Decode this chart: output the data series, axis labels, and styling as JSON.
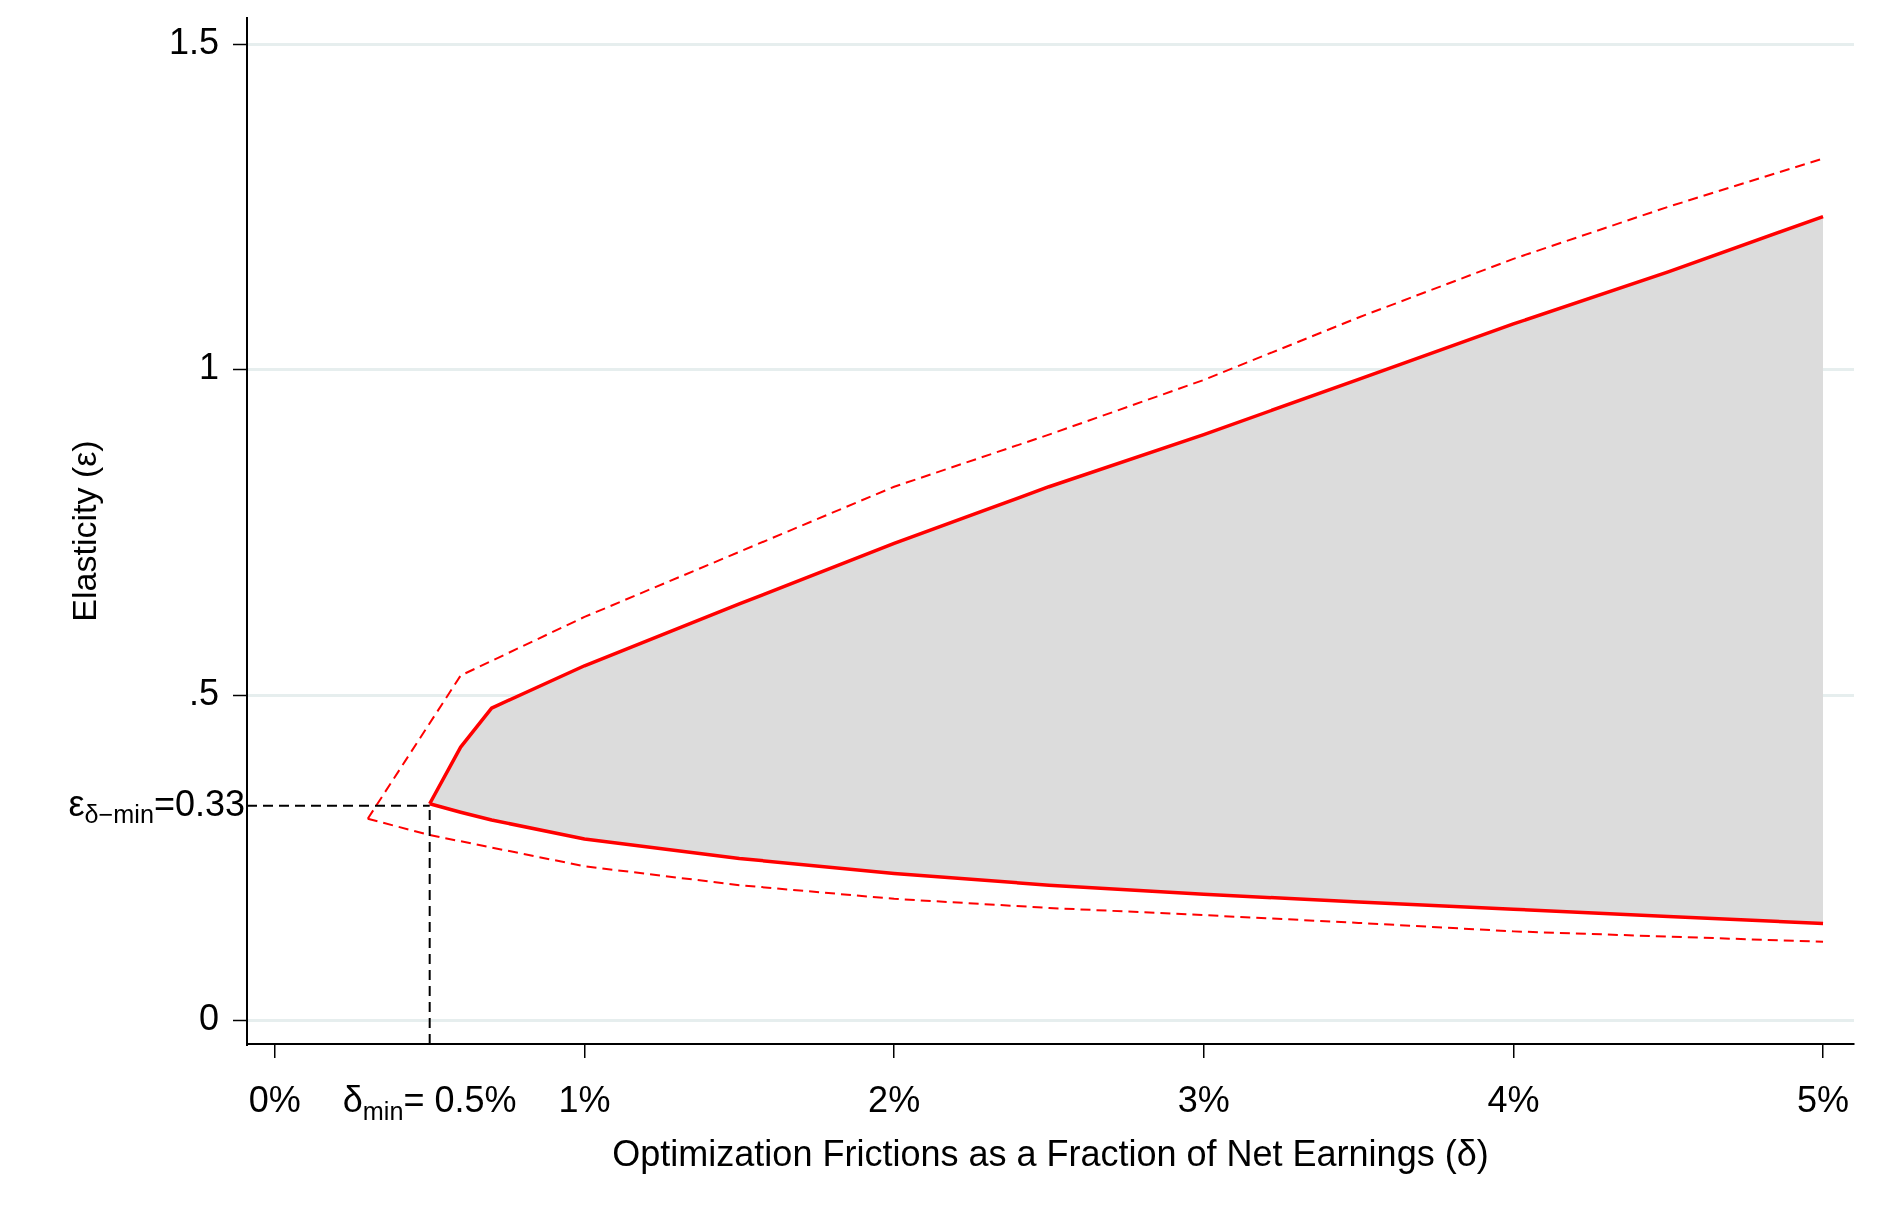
{
  "chart_data": {
    "type": "line",
    "xlabel": "Optimization Frictions as a Fraction of Net Earnings (δ)",
    "ylabel": "Elasticity (ε)",
    "x": [
      0.5,
      0.6,
      0.7,
      1,
      1.5,
      2,
      2.5,
      3,
      3.5,
      4,
      4.5,
      5
    ],
    "series": [
      {
        "color": "#ff0000",
        "line_style": "solid",
        "values": [
          0.333,
          0.32,
          0.308,
          0.279,
          0.249,
          0.226,
          0.208,
          0.194,
          0.182,
          0.171,
          0.16,
          0.149
        ]
      },
      {
        "type": "area",
        "color": "#ff0000",
        "line_style": "solid",
        "values": [
          0.333,
          0.42,
          0.48,
          0.545,
          0.64,
          0.733,
          0.82,
          0.9,
          0.985,
          1.07,
          1.15,
          1.235
        ]
      },
      {
        "color": "#ff0000",
        "line_style": "dashed",
        "x": [
          0.3,
          0.6,
          1,
          1.5,
          2,
          2.5,
          3,
          3.5,
          4,
          4.5,
          5
        ],
        "values": [
          0.31,
          0.53,
          0.62,
          0.72,
          0.82,
          0.9,
          0.984,
          1.08,
          1.17,
          1.25,
          1.324
        ]
      },
      {
        "color": "#ff0000",
        "line_style": "dashed",
        "x": [
          0.3,
          0.5,
          1,
          1.5,
          2,
          2.5,
          3,
          3.5,
          4,
          4.5,
          5
        ],
        "values": [
          0.31,
          0.285,
          0.237,
          0.208,
          0.187,
          0.173,
          0.162,
          0.15,
          0.137,
          0.129,
          0.121
        ]
      }
    ],
    "xlim": [
      -0.09,
      5.1
    ],
    "xticks": [
      {
        "value": 0,
        "label": "0%"
      },
      {
        "value": 1,
        "label": "1%"
      },
      {
        "value": 2,
        "label": "2%"
      },
      {
        "value": 3,
        "label": "3%"
      },
      {
        "value": 4,
        "label": "4%"
      },
      {
        "value": 5,
        "label": "5%"
      }
    ],
    "ylim": [
      -0.036,
      1.54
    ],
    "yticks": [
      0,
      {
        "value": 0.5,
        "label": ".5"
      },
      1,
      1.5
    ],
    "ref_lines": [
      {
        "axis": "x",
        "value": 0.5,
        "label": "δ$_{min}$= 0.5%",
        "color": "#000000",
        "line_style": "dashed"
      },
      {
        "axis": "y",
        "value": 0.33,
        "label": "ε$_{δ−min}$=0.33",
        "color": "#000000",
        "line_style": "dashed"
      }
    ],
    "grid": "y",
    "legend": false,
    "marker": "none"
  }
}
